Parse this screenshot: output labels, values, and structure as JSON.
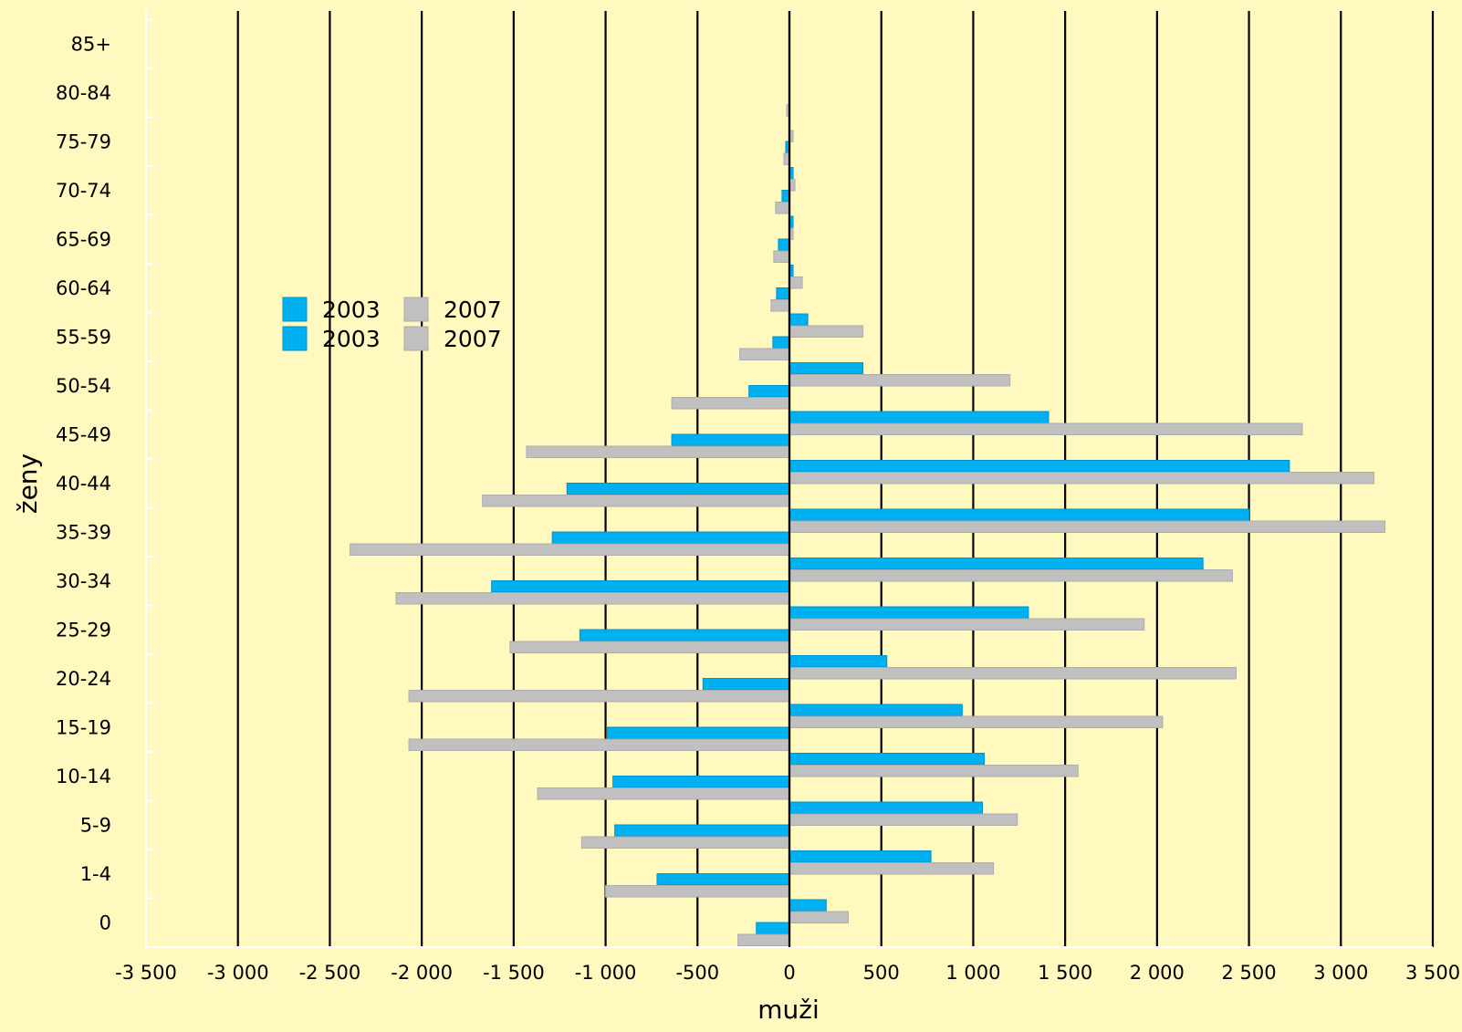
{
  "chart_data": {
    "type": "bar",
    "orientation": "horizontal",
    "layout": "population-pyramid",
    "xlabel": "muži",
    "ylabel": "ženy",
    "xlim": [
      -3500,
      3500
    ],
    "xticks": [
      -3500,
      -3000,
      -2500,
      -2000,
      -1500,
      -1000,
      -500,
      0,
      500,
      1000,
      1500,
      2000,
      2500,
      3000,
      3500
    ],
    "xtick_labels": [
      "-3 500",
      "-3 000",
      "-2 500",
      "-2 000",
      "-1 500",
      "-1 000",
      "-500",
      "0",
      "500",
      "1 000",
      "1 500",
      "2 000",
      "2 500",
      "3 000",
      "3 500"
    ],
    "grid": "vertical",
    "legend_position": "left-middle",
    "categories": [
      "0",
      "1-4",
      "5-9",
      "10-14",
      "15-19",
      "20-24",
      "25-29",
      "30-34",
      "35-39",
      "40-44",
      "45-49",
      "50-54",
      "55-59",
      "60-64",
      "65-69",
      "70-74",
      "75-79",
      "80-84",
      "85+"
    ],
    "series": [
      {
        "name": "2003",
        "side": "men",
        "color": "#00B0F0",
        "values": [
          200,
          770,
          1050,
          1060,
          940,
          530,
          1300,
          2250,
          2500,
          2720,
          1410,
          400,
          100,
          20,
          20,
          20,
          0,
          0,
          0
        ]
      },
      {
        "name": "2007",
        "side": "men",
        "color": "#C0C0C0",
        "values": [
          320,
          1110,
          1240,
          1570,
          2030,
          2430,
          1930,
          2410,
          3240,
          3180,
          2790,
          1200,
          400,
          70,
          20,
          30,
          20,
          0,
          0
        ]
      },
      {
        "name": "2003",
        "side": "women",
        "color": "#00B0F0",
        "values": [
          -180,
          -720,
          -950,
          -960,
          -990,
          -470,
          -1140,
          -1620,
          -1290,
          -1210,
          -640,
          -220,
          -90,
          -70,
          -60,
          -40,
          -20,
          0,
          0
        ]
      },
      {
        "name": "2007",
        "side": "women",
        "color": "#C0C0C0",
        "values": [
          -280,
          -1000,
          -1130,
          -1370,
          -2070,
          -2070,
          -1520,
          -2140,
          -2390,
          -1670,
          -1430,
          -640,
          -270,
          -100,
          -85,
          -75,
          -30,
          -15,
          0
        ]
      }
    ],
    "legend": [
      {
        "label": "2003",
        "color": "#00B0F0"
      },
      {
        "label": "2007",
        "color": "#C0C0C0"
      },
      {
        "label": "2003",
        "color": "#00B0F0"
      },
      {
        "label": "2007",
        "color": "#C0C0C0"
      }
    ]
  }
}
